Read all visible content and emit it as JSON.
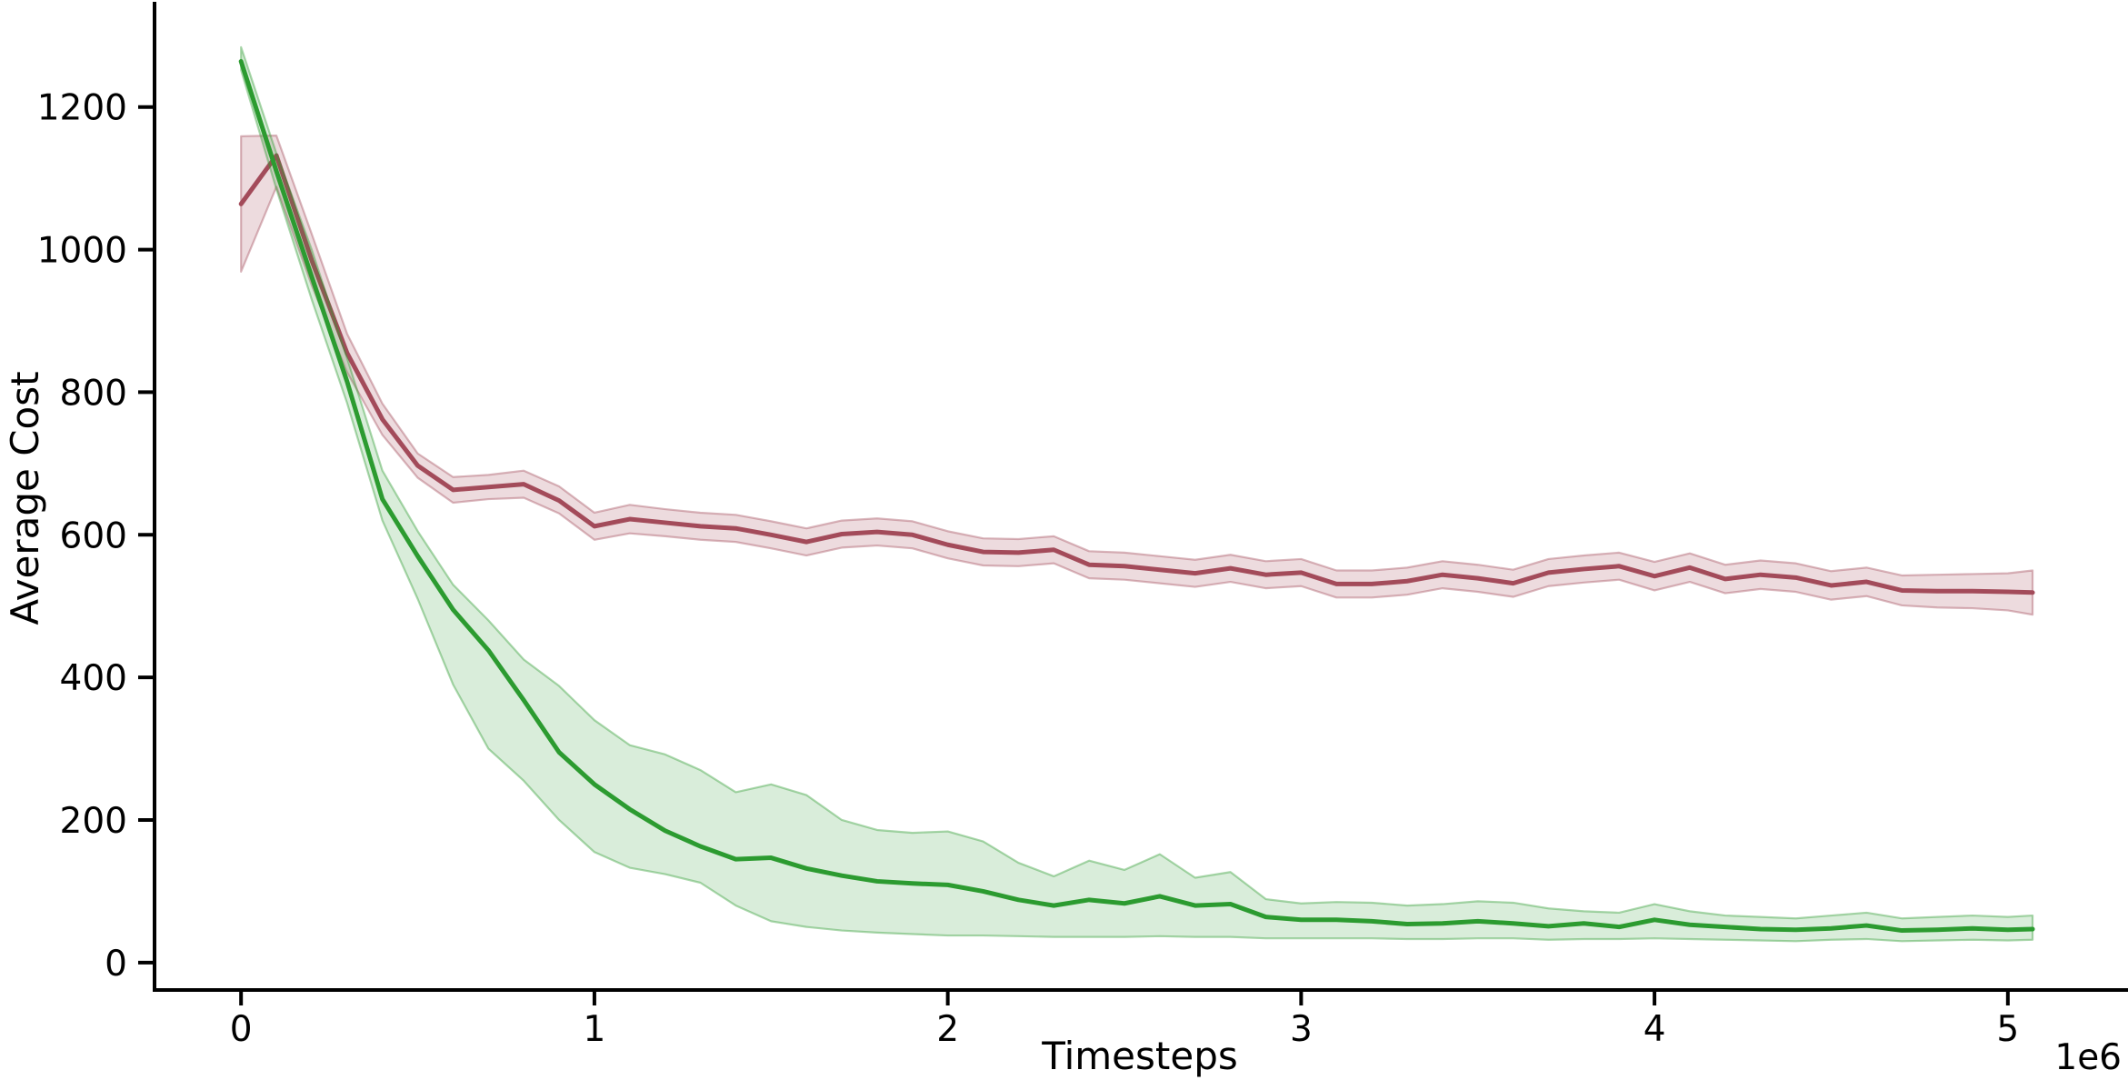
{
  "chart_data": {
    "type": "line",
    "title": "",
    "xlabel": "Timesteps",
    "ylabel": "Average Cost",
    "x_offset_label": "1e6",
    "x_scale_factor": 1000000,
    "xlim": [
      -250000,
      5340000
    ],
    "ylim": [
      -41,
      1345
    ],
    "grid": false,
    "legend_position": "none",
    "x_ticks": [
      0,
      1000000,
      2000000,
      3000000,
      4000000,
      5000000
    ],
    "x_tick_labels": [
      "0",
      "1",
      "2",
      "3",
      "4",
      "5"
    ],
    "y_ticks": [
      0,
      200,
      400,
      600,
      800,
      1000,
      1200
    ],
    "y_tick_labels": [
      "0",
      "200",
      "400",
      "600",
      "800",
      "1000",
      "1200"
    ],
    "x": [
      0,
      100000,
      200000,
      300000,
      400000,
      500000,
      600000,
      700000,
      800000,
      900000,
      1000000,
      1100000,
      1200000,
      1300000,
      1400000,
      1500000,
      1600000,
      1700000,
      1800000,
      1900000,
      2000000,
      2100000,
      2200000,
      2300000,
      2400000,
      2500000,
      2600000,
      2700000,
      2800000,
      2900000,
      3000000,
      3100000,
      3200000,
      3300000,
      3400000,
      3500000,
      3600000,
      3700000,
      3800000,
      3900000,
      4000000,
      4100000,
      4200000,
      4300000,
      4400000,
      4500000,
      4600000,
      4700000,
      4800000,
      4900000,
      5000000,
      5070000
    ],
    "series": [
      {
        "name": "red-series",
        "line_color": "#a34b5a",
        "band_fill_color": "rgba(163,75,90,0.20)",
        "band_edge_color": "rgba(163,75,90,0.40)",
        "values": [
          1064,
          1132,
          985,
          855,
          762,
          697,
          663,
          667,
          671,
          648,
          612,
          622,
          617,
          612,
          609,
          600,
          590,
          601,
          604,
          600,
          586,
          576,
          575,
          579,
          558,
          556,
          551,
          546,
          553,
          544,
          547,
          531,
          531,
          535,
          544,
          539,
          532,
          547,
          552,
          556,
          542,
          554,
          538,
          544,
          540,
          529,
          534,
          522,
          521,
          521,
          520,
          519
        ],
        "lower": [
          969,
          1088,
          950,
          828,
          740,
          680,
          645,
          650,
          652,
          630,
          593,
          602,
          598,
          593,
          590,
          581,
          571,
          582,
          585,
          581,
          567,
          557,
          556,
          560,
          539,
          537,
          532,
          527,
          534,
          525,
          528,
          512,
          512,
          516,
          525,
          520,
          513,
          528,
          533,
          537,
          522,
          534,
          518,
          524,
          520,
          509,
          514,
          501,
          498,
          497,
          494,
          488
        ],
        "upper": [
          1159,
          1160,
          1022,
          882,
          784,
          714,
          681,
          684,
          690,
          668,
          631,
          642,
          636,
          631,
          628,
          619,
          609,
          620,
          623,
          619,
          605,
          595,
          594,
          598,
          577,
          575,
          570,
          565,
          572,
          563,
          566,
          550,
          550,
          554,
          563,
          558,
          551,
          566,
          571,
          575,
          562,
          574,
          558,
          564,
          560,
          549,
          554,
          543,
          544,
          545,
          546,
          550
        ]
      },
      {
        "name": "green-series",
        "line_color": "#2c9b30",
        "band_fill_color": "rgba(44,155,48,0.18)",
        "band_edge_color": "rgba(44,155,48,0.40)",
        "values": [
          1264,
          1110,
          962,
          815,
          650,
          570,
          495,
          438,
          368,
          295,
          250,
          215,
          185,
          163,
          145,
          147,
          132,
          122,
          114,
          111,
          109,
          100,
          88,
          80,
          88,
          83,
          93,
          80,
          82,
          64,
          60,
          60,
          58,
          54,
          55,
          58,
          55,
          51,
          55,
          50,
          60,
          53,
          50,
          47,
          46,
          48,
          52,
          45,
          46,
          48,
          46,
          47
        ],
        "lower": [
          1252,
          1085,
          930,
          785,
          620,
          510,
          390,
          300,
          255,
          200,
          155,
          133,
          124,
          112,
          80,
          58,
          50,
          45,
          42,
          40,
          38,
          38,
          37,
          36,
          36,
          36,
          37,
          36,
          36,
          34,
          34,
          34,
          34,
          33,
          33,
          34,
          34,
          32,
          33,
          33,
          34,
          33,
          32,
          31,
          30,
          32,
          33,
          30,
          31,
          32,
          31,
          32
        ],
        "upper": [
          1284,
          1135,
          1000,
          848,
          690,
          605,
          530,
          480,
          425,
          388,
          340,
          305,
          292,
          270,
          239,
          250,
          235,
          200,
          186,
          182,
          184,
          170,
          140,
          121,
          143,
          130,
          152,
          119,
          127,
          89,
          83,
          85,
          84,
          80,
          82,
          86,
          84,
          76,
          72,
          70,
          82,
          72,
          66,
          64,
          62,
          66,
          70,
          62,
          64,
          66,
          64,
          66
        ]
      }
    ],
    "axis_color": "#000000",
    "background_color": "#ffffff"
  }
}
